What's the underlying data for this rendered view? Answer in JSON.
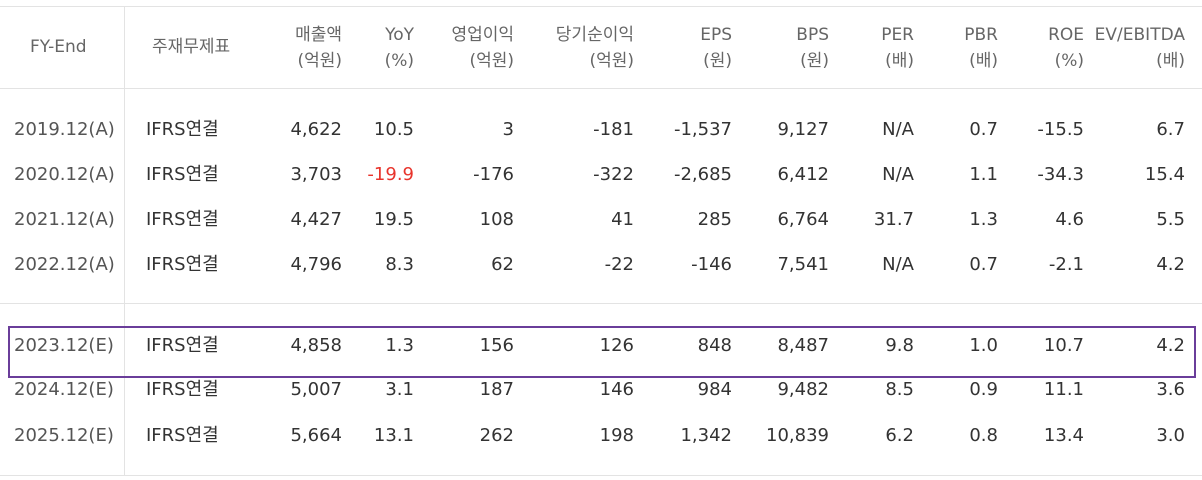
{
  "colors": {
    "accent_box": "#6a3d9a",
    "negative_yoy": "#e8342c",
    "grid": "#e3e3e3"
  },
  "headers": [
    {
      "line1": "FY-End",
      "line2": ""
    },
    {
      "line1": "주재무제표",
      "line2": ""
    },
    {
      "line1": "매출액",
      "line2": "(억원)"
    },
    {
      "line1": "YoY",
      "line2": "(%)"
    },
    {
      "line1": "영업이익",
      "line2": "(억원)"
    },
    {
      "line1": "당기순이익",
      "line2": "(억원)"
    },
    {
      "line1": "EPS",
      "line2": "(원)"
    },
    {
      "line1": "BPS",
      "line2": "(원)"
    },
    {
      "line1": "PER",
      "line2": "(배)"
    },
    {
      "line1": "PBR",
      "line2": "(배)"
    },
    {
      "line1": "ROE",
      "line2": "(%)"
    },
    {
      "line1": "EV/EBITDA",
      "line2": "(배)"
    }
  ],
  "rows": [
    {
      "cells": [
        "2019.12(A)",
        "IFRS연결",
        "4,622",
        "10.5",
        "3",
        "-181",
        "-1,537",
        "9,127",
        "N/A",
        "0.7",
        "-15.5",
        "6.7"
      ]
    },
    {
      "cells": [
        "2020.12(A)",
        "IFRS연결",
        "3,703",
        "-19.9",
        "-176",
        "-322",
        "-2,685",
        "6,412",
        "N/A",
        "1.1",
        "-34.3",
        "15.4"
      ]
    },
    {
      "cells": [
        "2021.12(A)",
        "IFRS연결",
        "4,427",
        "19.5",
        "108",
        "41",
        "285",
        "6,764",
        "31.7",
        "1.3",
        "4.6",
        "5.5"
      ]
    },
    {
      "cells": [
        "2022.12(A)",
        "IFRS연결",
        "4,796",
        "8.3",
        "62",
        "-22",
        "-146",
        "7,541",
        "N/A",
        "0.7",
        "-2.1",
        "4.2"
      ]
    },
    {
      "cells": [
        "2023.12(E)",
        "IFRS연결",
        "4,858",
        "1.3",
        "156",
        "126",
        "848",
        "8,487",
        "9.8",
        "1.0",
        "10.7",
        "4.2"
      ]
    },
    {
      "cells": [
        "2024.12(E)",
        "IFRS연결",
        "5,007",
        "3.1",
        "187",
        "146",
        "984",
        "9,482",
        "8.5",
        "0.9",
        "11.1",
        "3.6"
      ]
    },
    {
      "cells": [
        "2025.12(E)",
        "IFRS연결",
        "5,664",
        "13.1",
        "262",
        "198",
        "1,342",
        "10,839",
        "6.2",
        "0.8",
        "13.4",
        "3.0"
      ]
    }
  ]
}
